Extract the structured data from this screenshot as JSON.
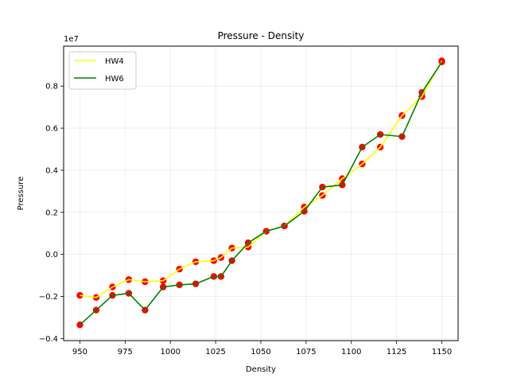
{
  "chart_data": {
    "type": "line",
    "title": "Pressure - Density",
    "xlabel": "Density",
    "ylabel": "Pressure",
    "y_offset_label": "1e7",
    "xlim": [
      941,
      1159
    ],
    "ylim": [
      -0.41,
      0.99
    ],
    "xticks": [
      950,
      975,
      1000,
      1025,
      1050,
      1075,
      1100,
      1125,
      1150
    ],
    "yticks": [
      -0.4,
      -0.2,
      0.0,
      0.2,
      0.4,
      0.6,
      0.8
    ],
    "ytick_labels": [
      "−0.4",
      "−0.2",
      "0.0",
      "0.2",
      "0.4",
      "0.6",
      "0.8"
    ],
    "grid": true,
    "legend_position": "top-left",
    "colors": {
      "HW4": "#ffff00",
      "HW6": "#008000",
      "markers": "#ff0000"
    },
    "series": [
      {
        "name": "HW4",
        "x": [
          950,
          959,
          968,
          977,
          986,
          996,
          1005,
          1014,
          1024,
          1028,
          1034,
          1043,
          1053,
          1063,
          1074,
          1084,
          1095,
          1106,
          1116,
          1128,
          1139,
          1150
        ],
        "y": [
          -0.195,
          -0.205,
          -0.155,
          -0.12,
          -0.13,
          -0.125,
          -0.07,
          -0.035,
          -0.03,
          -0.015,
          0.03,
          0.035,
          0.11,
          0.135,
          0.225,
          0.28,
          0.36,
          0.43,
          0.51,
          0.66,
          0.75,
          0.92
        ]
      },
      {
        "name": "HW6",
        "x": [
          950,
          959,
          968,
          977,
          986,
          996,
          1005,
          1014,
          1024,
          1028,
          1034,
          1043,
          1053,
          1063,
          1074,
          1084,
          1095,
          1106,
          1116,
          1128,
          1139,
          1150
        ],
        "y": [
          -0.335,
          -0.265,
          -0.195,
          -0.185,
          -0.265,
          -0.155,
          -0.145,
          -0.14,
          -0.105,
          -0.105,
          -0.03,
          0.055,
          0.11,
          0.135,
          0.205,
          0.32,
          0.33,
          0.51,
          0.57,
          0.56,
          0.77,
          0.915
        ]
      }
    ]
  }
}
